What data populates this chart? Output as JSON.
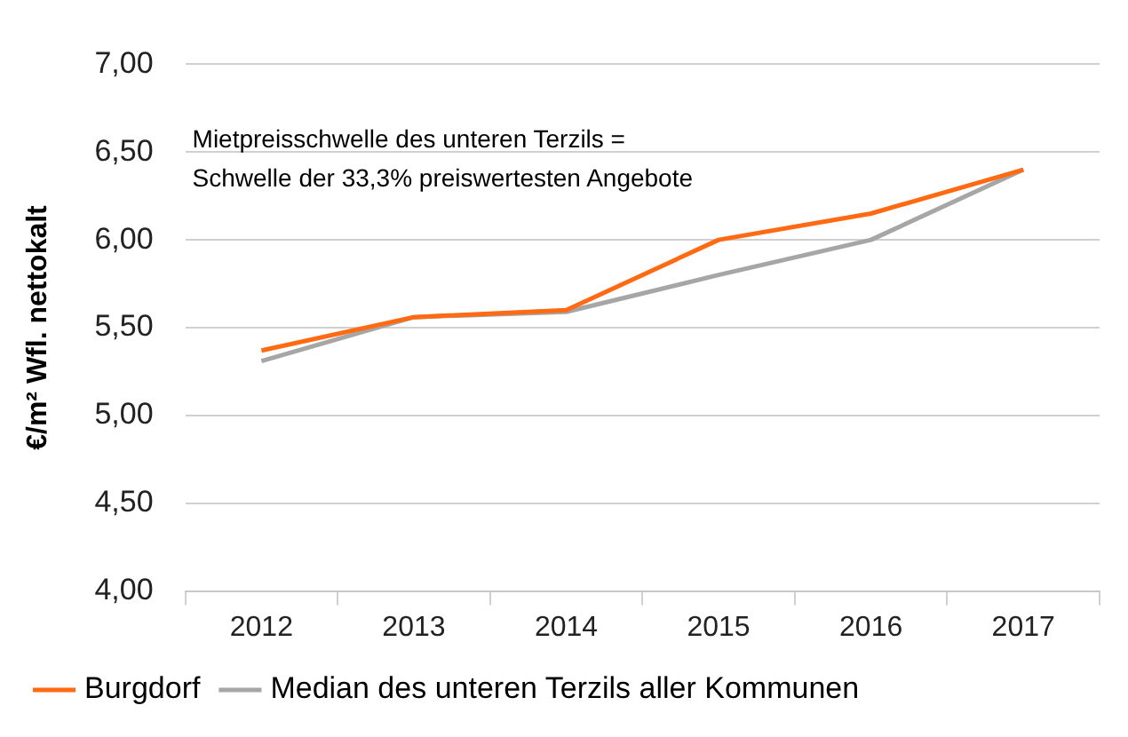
{
  "chart_data": {
    "type": "line",
    "ylabel": "€/m² Wfl. nettokalt",
    "annotations": [
      "Mietpreisschwelle des unteren Terzils =",
      "Schwelle der 33,3% preiswertesten Angebote"
    ],
    "categories": [
      "2012",
      "2013",
      "2014",
      "2015",
      "2016",
      "2017"
    ],
    "series": [
      {
        "name": "Burgdorf",
        "color": "#ff6a13",
        "values": [
          5.37,
          5.56,
          5.6,
          6.0,
          6.15,
          6.4
        ]
      },
      {
        "name": "Median des unteren Terzils aller Kommunen",
        "color": "#a6a6a6",
        "values": [
          5.31,
          5.56,
          5.59,
          5.8,
          6.0,
          6.4
        ]
      }
    ],
    "ylim": [
      4,
      7
    ],
    "yticks": [
      {
        "value": 4,
        "label": "4,00"
      },
      {
        "value": 4.5,
        "label": "4,50"
      },
      {
        "value": 5,
        "label": "5,00"
      },
      {
        "value": 5.5,
        "label": "5,50"
      },
      {
        "value": 6,
        "label": "6,00"
      },
      {
        "value": 6.5,
        "label": "6,50"
      },
      {
        "value": 7,
        "label": "7,00"
      }
    ],
    "grid": "y",
    "legend": "bottom",
    "marker": "none",
    "line_style": "solid"
  }
}
